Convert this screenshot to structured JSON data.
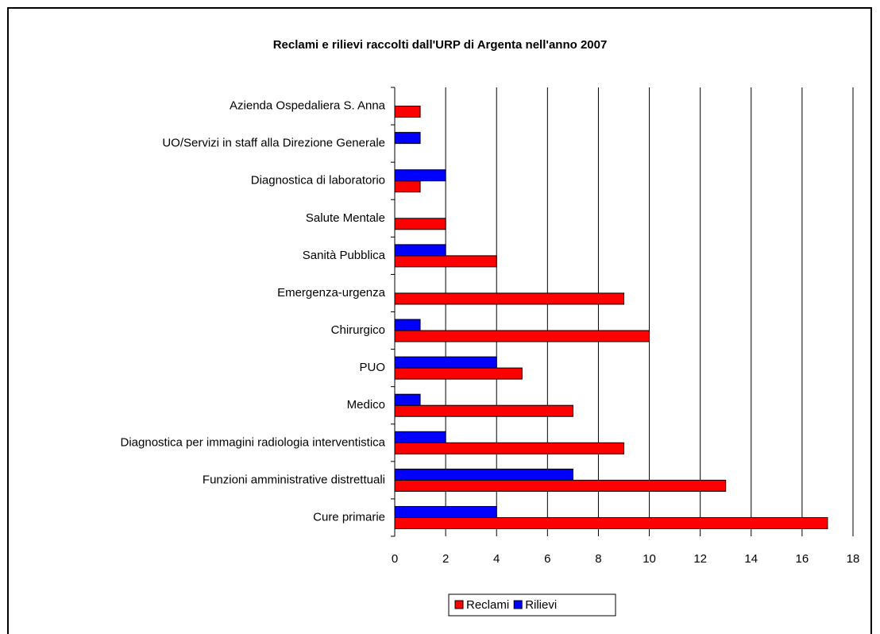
{
  "chart_data": {
    "type": "bar",
    "orientation": "horizontal",
    "title": "Reclami e rilievi raccolti dall'URP di Argenta nell'anno 2007",
    "categories": [
      "Azienda Ospedaliera S. Anna",
      "UO/Servizi in staff alla Direzione Generale",
      "Diagnostica di laboratorio",
      "Salute Mentale",
      "Sanità Pubblica",
      "Emergenza-urgenza",
      "Chirurgico",
      "PUO",
      "Medico",
      "Diagnostica per immagini radiologia interventistica",
      "Funzioni amministrative distrettuali",
      "Cure primarie"
    ],
    "series": [
      {
        "name": "Reclami",
        "color": "#ff0000",
        "values": [
          1,
          null,
          1,
          2,
          4,
          9,
          10,
          5,
          7,
          9,
          13,
          17
        ]
      },
      {
        "name": "Rilievi",
        "color": "#0000ff",
        "values": [
          null,
          1,
          2,
          null,
          2,
          null,
          1,
          4,
          1,
          2,
          7,
          4
        ]
      }
    ],
    "xlim": [
      0,
      18
    ],
    "xticks": [
      0,
      2,
      4,
      6,
      8,
      10,
      12,
      14,
      16,
      18
    ],
    "grid": true,
    "legend": "bottom"
  }
}
